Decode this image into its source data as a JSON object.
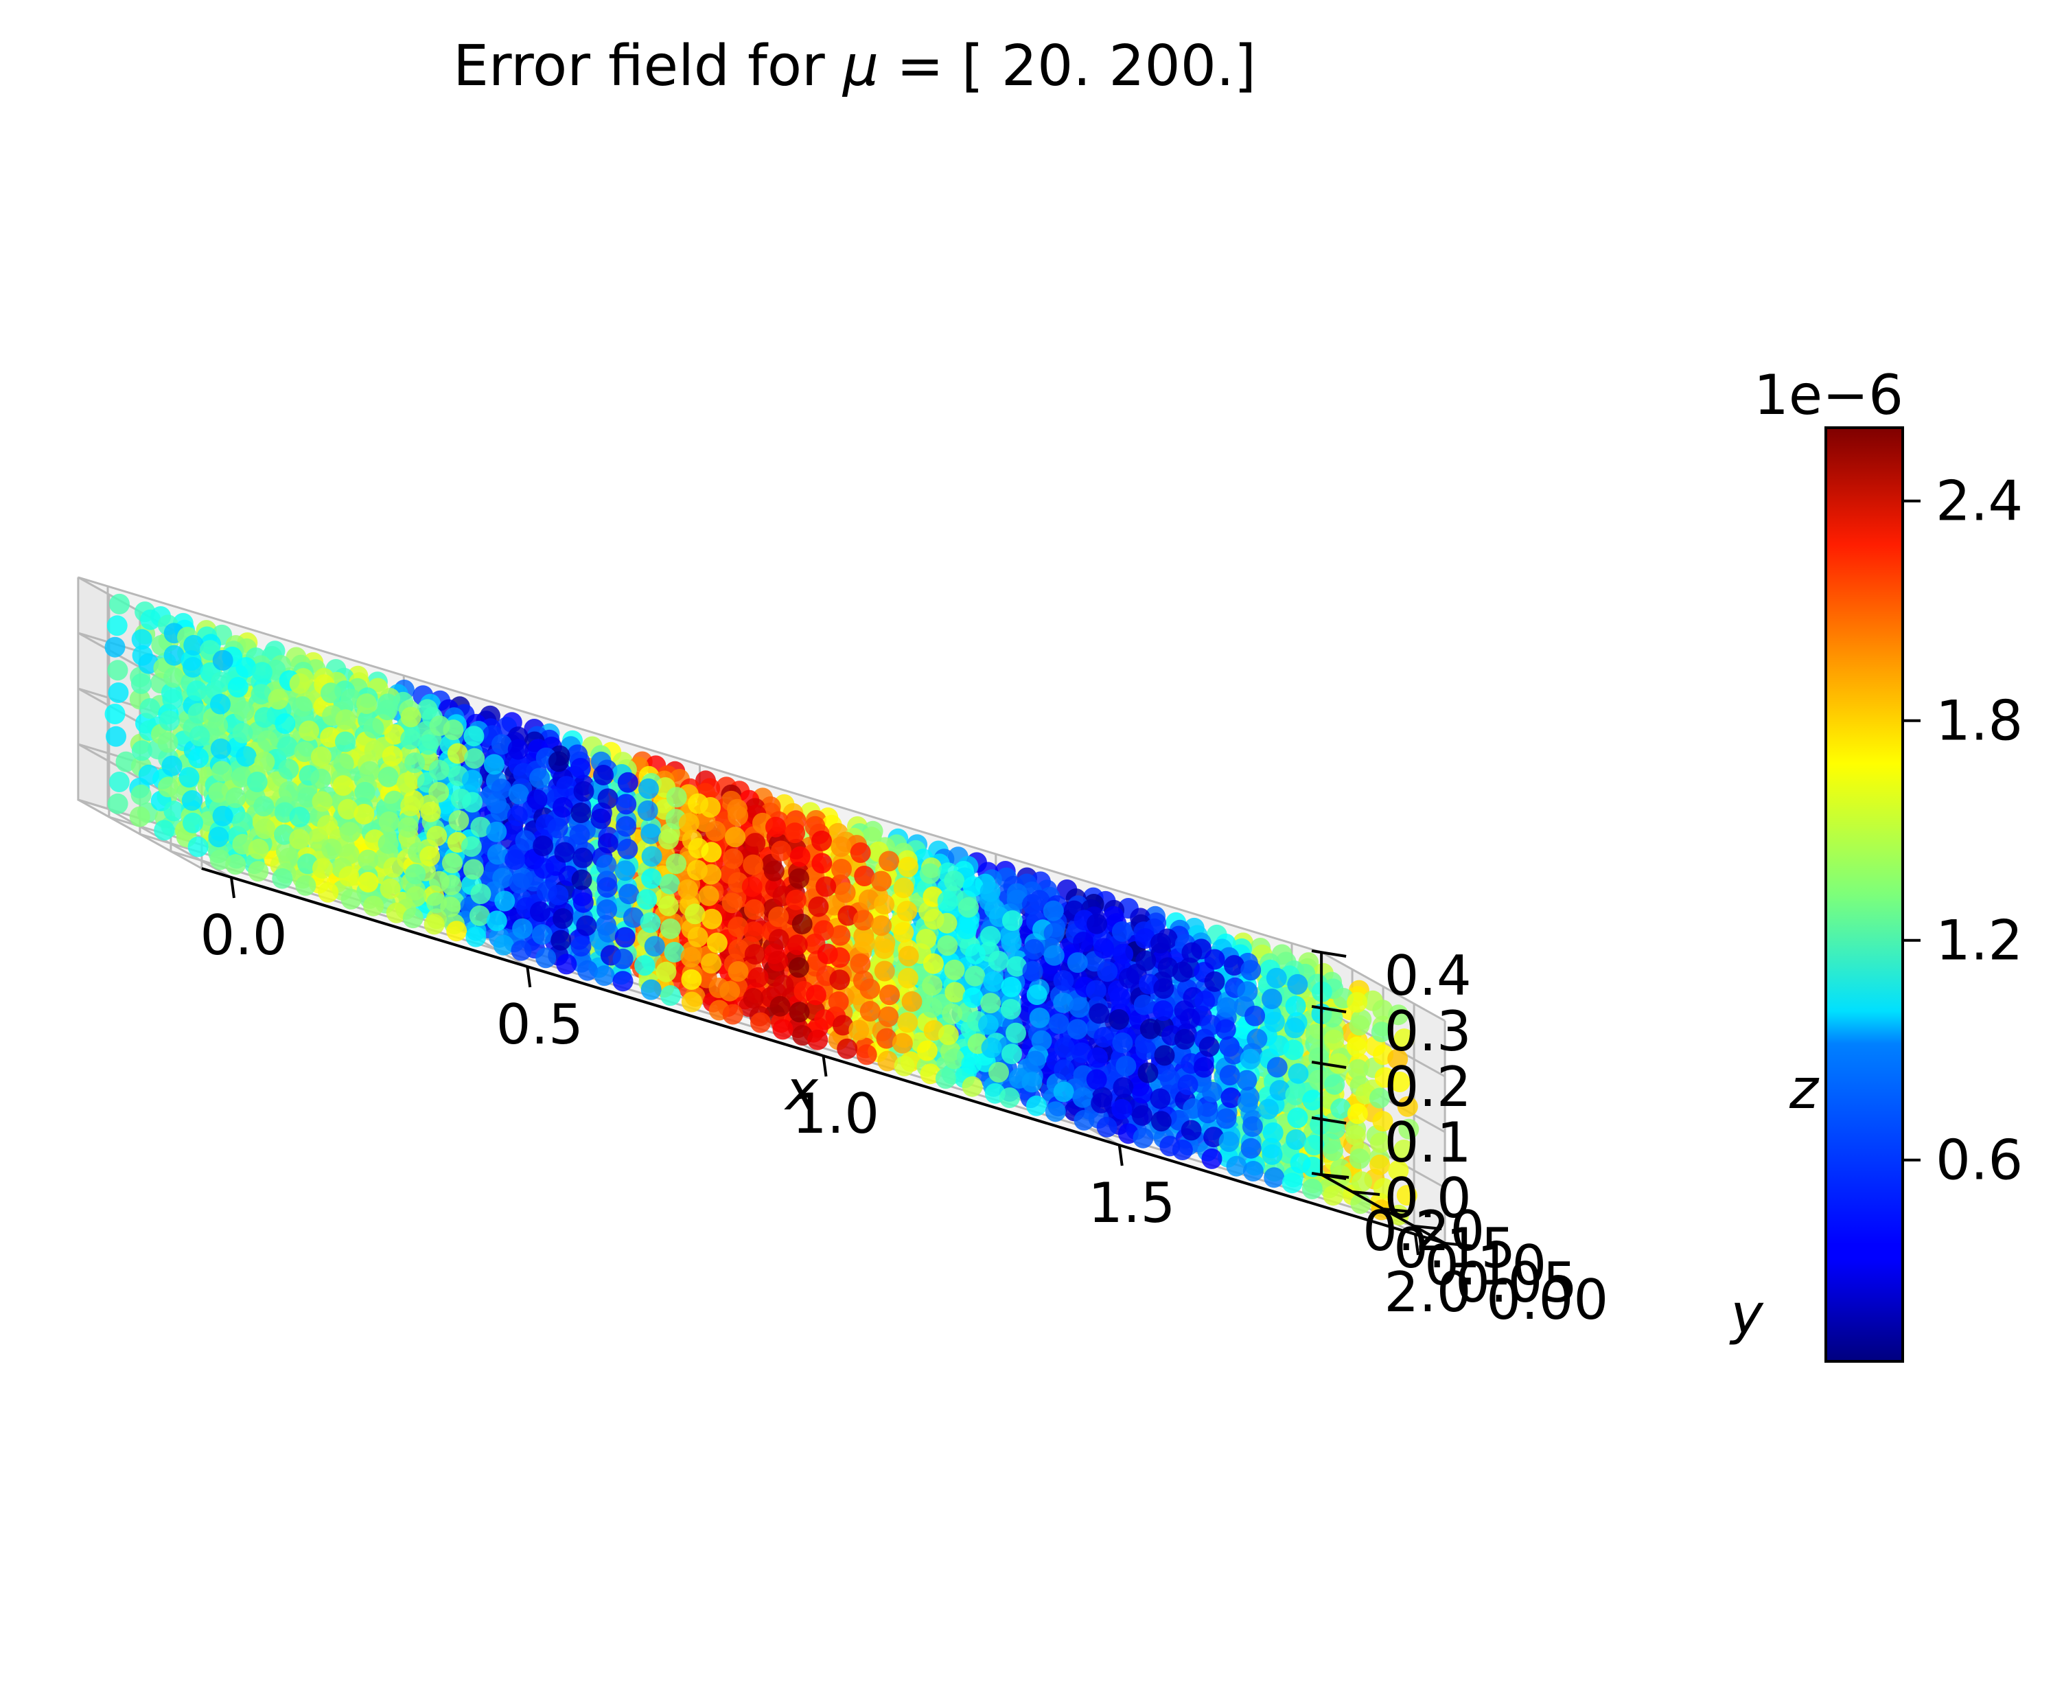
{
  "chart_data": {
    "type": "scatter",
    "projection": "3d",
    "title_prefix": "Error field for ",
    "title_symbol": "μ",
    "title_suffix": " = [ 20. 200.]",
    "xlabel": "x",
    "ylabel": "y",
    "zlabel": "z",
    "xlim": [
      -0.05,
      2.05
    ],
    "ylim": [
      0.0,
      0.2
    ],
    "zlim": [
      0.0,
      0.4
    ],
    "x_ticks": [
      "0.0",
      "0.5",
      "1.0",
      "1.5",
      "2.0"
    ],
    "y_ticks": [
      "0.00",
      "0.05",
      "0.10",
      "0.15",
      "0.20"
    ],
    "z_ticks": [
      "0.0",
      "0.1",
      "0.2",
      "0.3",
      "0.4"
    ],
    "grid": true,
    "colormap": "jet",
    "colorbar": {
      "offset_label": "1e−6",
      "range": [
        0.05,
        2.6
      ],
      "ticks": [
        "0.6",
        "1.2",
        "1.8",
        "2.4"
      ],
      "tick_values": [
        0.6,
        1.2,
        1.8,
        2.4
      ]
    },
    "error_profile_along_x": {
      "x": [
        0.0,
        0.2,
        0.4,
        0.5,
        0.6,
        0.7,
        0.8,
        0.9,
        1.0,
        1.1,
        1.2,
        1.3,
        1.4,
        1.5,
        1.6,
        1.7,
        1.8,
        1.9,
        2.0
      ],
      "error_e6": [
        1.1,
        1.4,
        1.4,
        0.6,
        0.3,
        0.6,
        1.7,
        2.2,
        2.4,
        2.0,
        1.5,
        1.1,
        0.7,
        0.4,
        0.3,
        0.5,
        0.9,
        1.4,
        1.6
      ]
    }
  }
}
